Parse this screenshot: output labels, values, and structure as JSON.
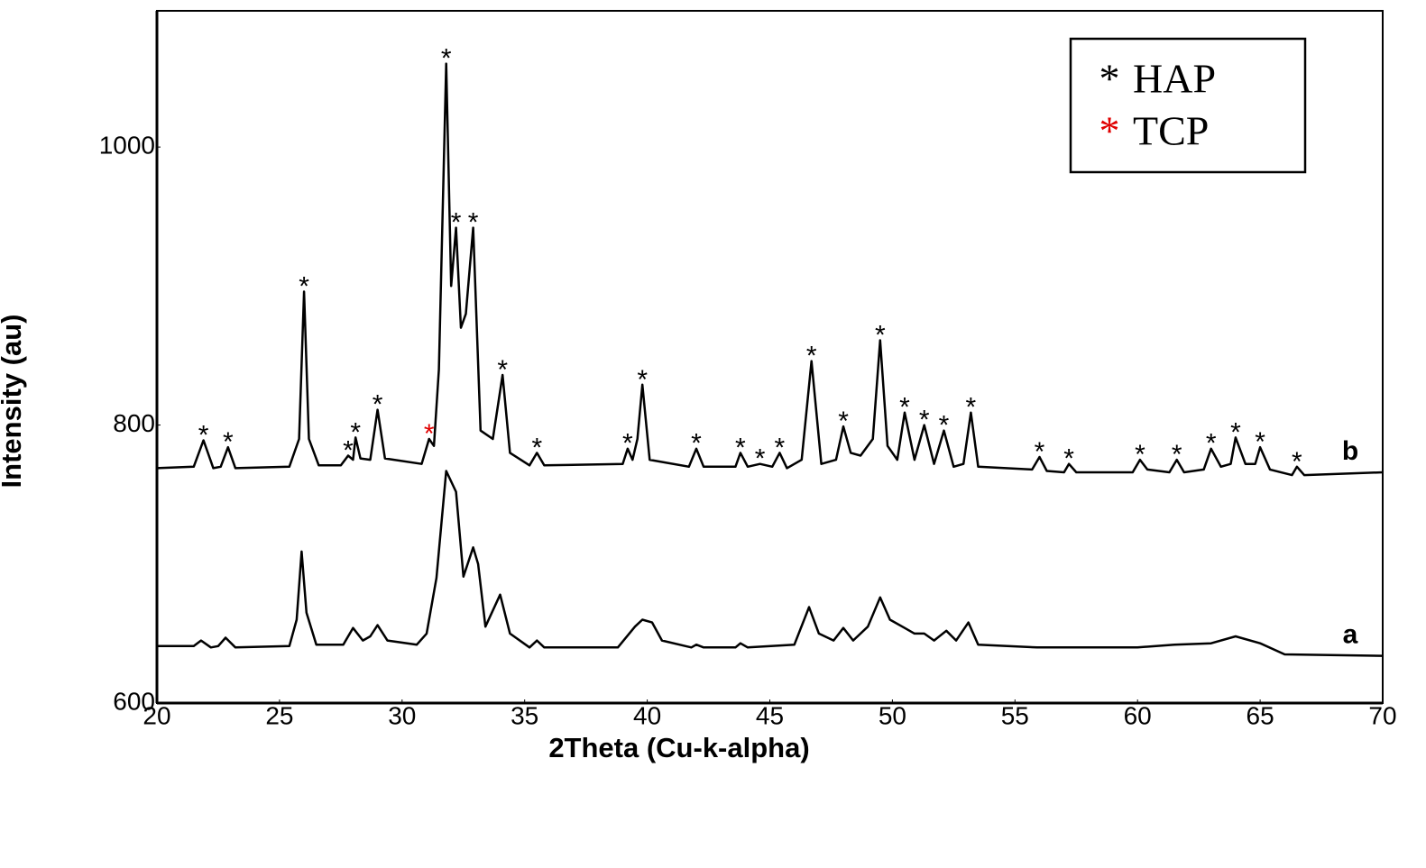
{
  "chart_data": {
    "type": "line",
    "x_label": "2Theta (Cu-k-alpha)",
    "y_label": "Intensity (au)",
    "xlim": [
      20,
      70
    ],
    "xticks": [
      20,
      25,
      30,
      35,
      40,
      45,
      50,
      55,
      60,
      65,
      70
    ],
    "ylim": [
      600,
      1098
    ],
    "yticks": [
      600,
      800,
      1000
    ],
    "grid": false,
    "legend": [
      {
        "symbol": "*",
        "name": "HAP",
        "color": "#000000"
      },
      {
        "symbol": "*",
        "name": "TCP",
        "color": "#e00000"
      }
    ],
    "legend_position": "upper right",
    "series": [
      {
        "name": "a",
        "color": "#000000",
        "x": [
          20,
          21.5,
          21.8,
          22.2,
          22.5,
          22.8,
          23.2,
          25.4,
          25.7,
          25.9,
          26.1,
          26.5,
          27.6,
          28.0,
          28.4,
          28.7,
          29.0,
          29.4,
          30.6,
          31.0,
          31.4,
          31.8,
          32.2,
          32.5,
          32.9,
          33.1,
          33.4,
          34.0,
          34.4,
          35.2,
          35.5,
          35.8,
          38.8,
          39.5,
          39.8,
          40.2,
          40.6,
          41.8,
          42,
          42.3,
          43.6,
          43.8,
          44.1,
          46.0,
          46.6,
          47.0,
          47.6,
          48.0,
          48.4,
          49.0,
          49.5,
          49.9,
          50.5,
          50.9,
          51.3,
          51.7,
          52.2,
          52.6,
          53.1,
          53.5,
          55.9,
          60,
          61.5,
          63,
          64,
          65,
          66,
          70
        ],
        "values": [
          641,
          641,
          645,
          640,
          641,
          647,
          640,
          641,
          660,
          709,
          665,
          642,
          642,
          654,
          645,
          648,
          656,
          645,
          642,
          650,
          690,
          767,
          752,
          691,
          712,
          700,
          655,
          678,
          650,
          640,
          645,
          640,
          640,
          655,
          660,
          658,
          645,
          640,
          642,
          640,
          640,
          643,
          640,
          642,
          669,
          650,
          645,
          654,
          645,
          655,
          676,
          660,
          654,
          650,
          650,
          645,
          652,
          645,
          658,
          642,
          640,
          640,
          642,
          643,
          648,
          643,
          635,
          634
        ]
      },
      {
        "name": "b",
        "color": "#000000",
        "x": [
          20,
          21.5,
          21.9,
          22.3,
          22.6,
          22.9,
          23.2,
          25.4,
          25.8,
          26.0,
          26.2,
          26.6,
          27.5,
          27.8,
          28.0,
          28.1,
          28.3,
          28.7,
          29.0,
          29.3,
          30.8,
          31.1,
          31.3,
          31.5,
          31.8,
          32.0,
          32.2,
          32.4,
          32.6,
          32.9,
          33.2,
          33.7,
          34.1,
          34.4,
          35.2,
          35.5,
          35.8,
          39.0,
          39.2,
          39.4,
          39.6,
          39.8,
          40.1,
          41.7,
          42.0,
          42.3,
          43.6,
          43.8,
          44.1,
          44.6,
          45.1,
          45.4,
          45.7,
          46.3,
          46.7,
          47.1,
          47.7,
          48.0,
          48.3,
          48.7,
          49.2,
          49.5,
          49.8,
          50.2,
          50.5,
          50.9,
          51.3,
          51.7,
          52.1,
          52.5,
          52.9,
          53.2,
          53.5,
          55.7,
          56.0,
          56.3,
          57.0,
          57.2,
          57.5,
          59.8,
          60.1,
          60.4,
          61.3,
          61.6,
          61.9,
          62.7,
          63.0,
          63.4,
          63.8,
          64.0,
          64.4,
          64.8,
          65.0,
          65.4,
          66.3,
          66.5,
          66.8,
          70
        ],
        "values": [
          769,
          770,
          789,
          769,
          770,
          784,
          769,
          770,
          790,
          896,
          790,
          771,
          771,
          778,
          775,
          791,
          776,
          775,
          811,
          776,
          772,
          790,
          785,
          840,
          1060,
          900,
          942,
          870,
          880,
          942,
          796,
          790,
          836,
          780,
          771,
          780,
          771,
          772,
          783,
          775,
          790,
          829,
          775,
          770,
          783,
          770,
          770,
          780,
          770,
          772,
          770,
          780,
          769,
          775,
          846,
          772,
          775,
          799,
          780,
          778,
          790,
          861,
          785,
          775,
          809,
          775,
          800,
          772,
          796,
          770,
          772,
          809,
          770,
          768,
          777,
          767,
          766,
          772,
          766,
          766,
          775,
          768,
          766,
          775,
          766,
          768,
          783,
          770,
          772,
          791,
          772,
          772,
          784,
          768,
          764,
          770,
          764,
          766
        ]
      }
    ],
    "annotations": [
      {
        "text": "*",
        "x": 21.9,
        "y": 789,
        "color": "#000000"
      },
      {
        "text": "*",
        "x": 22.9,
        "y": 784,
        "color": "#000000"
      },
      {
        "text": "*",
        "x": 26.0,
        "y": 896,
        "color": "#000000"
      },
      {
        "text": "*",
        "x": 27.8,
        "y": 778,
        "color": "#000000"
      },
      {
        "text": "*",
        "x": 28.1,
        "y": 791,
        "color": "#000000"
      },
      {
        "text": "*",
        "x": 29.0,
        "y": 811,
        "color": "#000000"
      },
      {
        "text": "*",
        "x": 31.1,
        "y": 790,
        "color": "#e00000"
      },
      {
        "text": "*",
        "x": 31.8,
        "y": 1060,
        "color": "#000000"
      },
      {
        "text": "*",
        "x": 32.2,
        "y": 942,
        "color": "#000000"
      },
      {
        "text": "*",
        "x": 32.9,
        "y": 942,
        "color": "#000000"
      },
      {
        "text": "*",
        "x": 34.1,
        "y": 836,
        "color": "#000000"
      },
      {
        "text": "*",
        "x": 35.5,
        "y": 780,
        "color": "#000000"
      },
      {
        "text": "*",
        "x": 39.2,
        "y": 783,
        "color": "#000000"
      },
      {
        "text": "*",
        "x": 39.8,
        "y": 829,
        "color": "#000000"
      },
      {
        "text": "*",
        "x": 42.0,
        "y": 783,
        "color": "#000000"
      },
      {
        "text": "*",
        "x": 43.8,
        "y": 780,
        "color": "#000000"
      },
      {
        "text": "*",
        "x": 44.6,
        "y": 772,
        "color": "#000000"
      },
      {
        "text": "*",
        "x": 45.4,
        "y": 780,
        "color": "#000000"
      },
      {
        "text": "*",
        "x": 46.7,
        "y": 846,
        "color": "#000000"
      },
      {
        "text": "*",
        "x": 48.0,
        "y": 799,
        "color": "#000000"
      },
      {
        "text": "*",
        "x": 49.5,
        "y": 861,
        "color": "#000000"
      },
      {
        "text": "*",
        "x": 50.5,
        "y": 809,
        "color": "#000000"
      },
      {
        "text": "*",
        "x": 51.3,
        "y": 800,
        "color": "#000000"
      },
      {
        "text": "*",
        "x": 52.1,
        "y": 796,
        "color": "#000000"
      },
      {
        "text": "*",
        "x": 53.2,
        "y": 809,
        "color": "#000000"
      },
      {
        "text": "*",
        "x": 56.0,
        "y": 777,
        "color": "#000000"
      },
      {
        "text": "*",
        "x": 57.2,
        "y": 772,
        "color": "#000000"
      },
      {
        "text": "*",
        "x": 60.1,
        "y": 775,
        "color": "#000000"
      },
      {
        "text": "*",
        "x": 61.6,
        "y": 775,
        "color": "#000000"
      },
      {
        "text": "*",
        "x": 63.0,
        "y": 783,
        "color": "#000000"
      },
      {
        "text": "*",
        "x": 64.0,
        "y": 791,
        "color": "#000000"
      },
      {
        "text": "*",
        "x": 65.0,
        "y": 784,
        "color": "#000000"
      },
      {
        "text": "*",
        "x": 66.5,
        "y": 770,
        "color": "#000000"
      }
    ]
  }
}
